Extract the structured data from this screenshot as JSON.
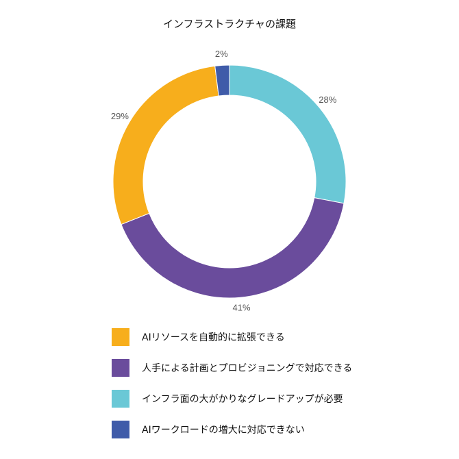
{
  "chart_data": {
    "type": "pie",
    "title": "インフラストラクチャの課題",
    "donut": true,
    "labels": [
      "インフラ面の大がかりなグレードアップが必要",
      "人手による計画とプロビジョニングで対応できる",
      "AIリソースを自動的に拡張できる",
      "AIワークロードの増大に対応できない"
    ],
    "values": [
      28,
      41,
      29,
      2
    ],
    "value_labels": [
      "28%",
      "41%",
      "29%",
      "2%"
    ],
    "colors": [
      "#6ac8d6",
      "#6a4c9c",
      "#f7ae1c",
      "#3f5ba9"
    ],
    "legend_position": "bottom",
    "legend": [
      {
        "label": "AIリソースを自動的に拡張できる",
        "color": "#f7ae1c"
      },
      {
        "label": "人手による計画とプロビジョニングで対応できる",
        "color": "#6a4c9c"
      },
      {
        "label": "インフラ面の大がかりなグレードアップが必要",
        "color": "#6ac8d6"
      },
      {
        "label": "AIワークロードの増大に対応できない",
        "color": "#3f5ba9"
      }
    ]
  }
}
